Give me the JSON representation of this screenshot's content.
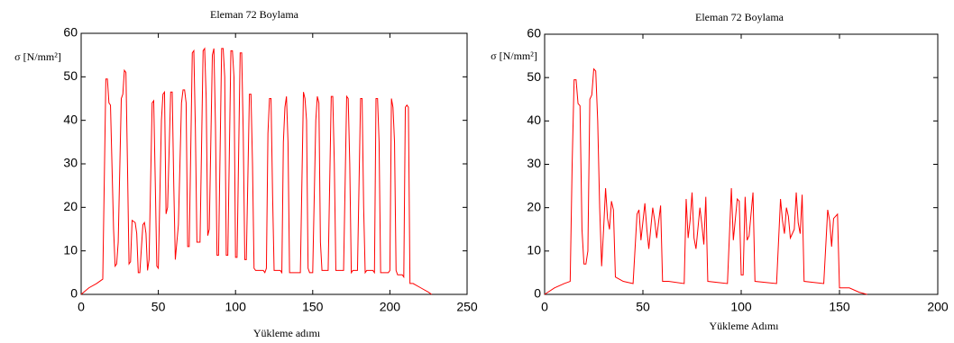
{
  "chart_data": [
    {
      "type": "line",
      "title": "Eleman  72   Boylama",
      "xlabel": "Yükleme adımı",
      "ylabel": "σ  [N/mm²]",
      "color": "#ff0000",
      "xlim": [
        0,
        250
      ],
      "ylim": [
        0,
        60
      ],
      "xticks": [
        0,
        50,
        100,
        150,
        200,
        250
      ],
      "yticks": [
        0,
        10,
        20,
        30,
        40,
        50,
        60
      ],
      "x": [
        0,
        5,
        10,
        14,
        16,
        17,
        18,
        19,
        21,
        22,
        23,
        24,
        26,
        27,
        28,
        29,
        30,
        31,
        32,
        33,
        35,
        36,
        37,
        38,
        40,
        41,
        42,
        43,
        44,
        46,
        47,
        48,
        49,
        50,
        52,
        53,
        54,
        55,
        56,
        58,
        59,
        60,
        61,
        63,
        65,
        66,
        67,
        68,
        69,
        70,
        72,
        73,
        74,
        75,
        77,
        79,
        80,
        81,
        82,
        83,
        85,
        86,
        87,
        88,
        89,
        91,
        92,
        93,
        94,
        95,
        97,
        98,
        99,
        100,
        101,
        103,
        104,
        105,
        106,
        107,
        109,
        110,
        111,
        112,
        113,
        118,
        119,
        120,
        121,
        122,
        123,
        124,
        125,
        126,
        129,
        130,
        131,
        132,
        133,
        134,
        135,
        136,
        141,
        142,
        144,
        145,
        146,
        147,
        148,
        150,
        152,
        153,
        154,
        155,
        156,
        159,
        160,
        162,
        163,
        164,
        165,
        166,
        170,
        172,
        173,
        174,
        175,
        176,
        179,
        181,
        182,
        183,
        184,
        185,
        189,
        190,
        191,
        192,
        193,
        194,
        195,
        199,
        200,
        201,
        202,
        203,
        204,
        205,
        208,
        209,
        210,
        211,
        212,
        213,
        215,
        220,
        225,
        227
      ],
      "values": [
        0,
        1.5,
        2.5,
        3.5,
        49.5,
        49.5,
        44,
        43.5,
        15,
        6.5,
        7,
        12,
        45,
        46,
        51.5,
        51,
        30,
        7,
        7.5,
        17,
        16.5,
        14,
        5,
        5,
        16,
        16.5,
        14,
        5.5,
        8,
        44,
        44.5,
        26,
        6.5,
        6,
        40,
        46,
        46.5,
        18.5,
        20,
        46.5,
        46.5,
        25,
        8,
        16,
        44,
        47,
        47,
        44,
        11,
        11,
        55.5,
        56,
        38,
        12,
        12,
        56,
        56.5,
        45,
        13.5,
        15,
        55,
        56.5,
        39,
        9,
        9,
        56.5,
        56.5,
        50,
        9,
        9,
        56,
        56,
        50,
        8.5,
        8.5,
        55.5,
        55.5,
        37,
        8,
        8,
        46,
        46,
        30,
        6,
        5.5,
        5.5,
        5,
        6,
        37,
        45,
        45,
        23,
        5.5,
        5.5,
        5.5,
        5,
        35,
        43,
        45.5,
        35,
        5,
        5,
        5,
        5,
        46.5,
        45,
        40,
        6,
        5,
        5,
        40,
        45.5,
        44,
        12,
        5.5,
        5.5,
        5.5,
        45.5,
        45.5,
        30,
        5.5,
        5.5,
        5.5,
        45.5,
        45,
        30,
        5,
        5.5,
        5.5,
        45,
        45,
        20,
        5,
        5.5,
        5.5,
        5,
        45,
        45,
        35,
        5,
        5,
        5,
        5.5,
        45,
        43,
        35,
        5.5,
        4.5,
        4.5,
        4,
        43,
        43.5,
        43,
        2.5,
        2.5,
        1.5,
        0.5,
        0
      ]
    },
    {
      "type": "line",
      "title": "Eleman 72 Boylama",
      "xlabel": "Yükleme Adımı",
      "ylabel": "σ [N/mm²]",
      "color": "#ff0000",
      "xlim": [
        0,
        200
      ],
      "ylim": [
        0,
        60
      ],
      "xticks": [
        0,
        50,
        100,
        150,
        200
      ],
      "yticks": [
        0,
        10,
        20,
        30,
        40,
        50,
        60
      ],
      "x": [
        0,
        5,
        10,
        13,
        14,
        15,
        16,
        17,
        18,
        19,
        20,
        21,
        22,
        23,
        24,
        25,
        26,
        27,
        28,
        29,
        30,
        31,
        32,
        33,
        34,
        35,
        36,
        40,
        45,
        47,
        48,
        49,
        51,
        52,
        53,
        55,
        56,
        57,
        59,
        60,
        63,
        71,
        72,
        73,
        74,
        75,
        76,
        77,
        79,
        80,
        81,
        82,
        83,
        93,
        95,
        96,
        98,
        99,
        100,
        101,
        102,
        103,
        104,
        106,
        107,
        118,
        120,
        121,
        122,
        123,
        124,
        125,
        127,
        128,
        129,
        130,
        131,
        132,
        142,
        144,
        145,
        146,
        147,
        149,
        150,
        155,
        160,
        164
      ],
      "values": [
        0,
        1.5,
        2.5,
        3,
        30,
        49.5,
        49.5,
        44,
        43.5,
        15,
        7,
        7,
        10,
        45,
        46,
        52,
        51.5,
        40,
        20,
        6.5,
        15,
        24.5,
        17.5,
        15,
        21.5,
        19.5,
        4,
        3,
        2.5,
        18.5,
        19.5,
        12.5,
        21,
        15,
        10.5,
        20,
        17,
        13,
        20.5,
        3,
        3,
        2.5,
        22,
        13,
        17,
        23.5,
        13,
        10.5,
        20,
        16,
        11.5,
        22.5,
        3,
        2.5,
        24.5,
        12.5,
        22,
        21.5,
        4.5,
        4.5,
        22.5,
        12.5,
        13.5,
        23.5,
        3,
        2.5,
        22,
        17,
        14,
        20,
        18,
        13,
        15,
        23.5,
        16.5,
        14,
        23,
        3,
        2.5,
        19.5,
        17,
        11,
        17.5,
        18.5,
        1.5,
        1.5,
        0.5,
        0
      ]
    }
  ]
}
